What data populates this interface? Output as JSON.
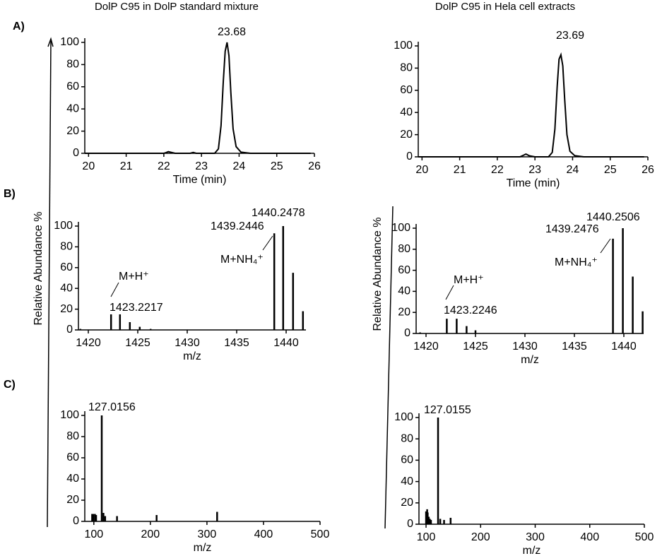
{
  "chart_data": [
    {
      "type": "line",
      "panel_label": "A)",
      "title": "DolP C95 in DolP standard mixture",
      "xlabel": "Time (min)",
      "x": [
        19.9,
        21,
        22,
        22.05,
        22.12,
        22.2,
        22.3,
        22.7,
        22.78,
        22.86,
        23,
        23.35,
        23.45,
        23.52,
        23.58,
        23.63,
        23.68,
        23.73,
        23.78,
        23.84,
        23.92,
        24.05,
        24.3,
        25,
        25.9
      ],
      "values": [
        0,
        0,
        0,
        0.5,
        1.5,
        0.8,
        0,
        0,
        0.8,
        0,
        0,
        0,
        4,
        25,
        65,
        92,
        100,
        88,
        55,
        22,
        6,
        1,
        0,
        0,
        0
      ],
      "color": "#000000",
      "xlim": [
        19.9,
        26
      ],
      "ylim": [
        0,
        100
      ],
      "xticks": [
        20,
        21,
        22,
        23,
        24,
        25,
        26
      ],
      "yticks": [
        0,
        20,
        40,
        60,
        80,
        100
      ],
      "annotations": [
        "23.68"
      ]
    },
    {
      "type": "stem",
      "panel_label": "B)",
      "ylabel": "Relative Abundance %",
      "xlabel": "m/z",
      "x": [
        1419.2,
        1422.3,
        1423.2,
        1424.2,
        1425.2,
        1426.3,
        1438.8,
        1439.7,
        1440.7,
        1441.7
      ],
      "values": [
        1,
        15,
        15,
        7.5,
        3,
        1,
        93,
        100,
        55,
        18
      ],
      "color": "#000000",
      "xlim": [
        1419,
        1442
      ],
      "ylim": [
        0,
        100
      ],
      "xticks": [
        1420,
        1425,
        1430,
        1435,
        1440
      ],
      "yticks": [
        0,
        20,
        40,
        60,
        80,
        100
      ],
      "annotations": [
        "M+H⁺",
        "1423.2217",
        "1439.2446",
        "1440.2478",
        "M+NH₄⁺"
      ]
    },
    {
      "type": "stem",
      "panel_label": "C)",
      "xlabel": "m/z",
      "x": [
        97,
        99,
        102,
        104,
        114,
        117,
        120,
        141,
        211,
        318
      ],
      "values": [
        7,
        7,
        7,
        6,
        100,
        8,
        5,
        5,
        6,
        9
      ],
      "color": "#000000",
      "xlim": [
        84,
        500
      ],
      "ylim": [
        0,
        100
      ],
      "xticks": [
        100,
        200,
        300,
        400,
        500
      ],
      "yticks": [
        0,
        20,
        40,
        60,
        80,
        100
      ],
      "annotations": [
        "127.0156"
      ]
    },
    {
      "type": "line",
      "title": "DolP C95 in Hela cell extracts",
      "xlabel": "Time (min)",
      "x": [
        19.9,
        21,
        22,
        22.6,
        22.7,
        22.76,
        22.85,
        23,
        23.36,
        23.46,
        23.53,
        23.59,
        23.64,
        23.69,
        23.74,
        23.79,
        23.85,
        23.93,
        24.06,
        24.3,
        25,
        25.9
      ],
      "values": [
        0,
        0,
        0,
        0,
        1.5,
        2.5,
        1,
        0,
        0,
        4,
        25,
        63,
        88,
        92,
        82,
        52,
        20,
        5,
        1,
        0,
        0,
        0
      ],
      "color": "#000000",
      "xlim": [
        19.9,
        26
      ],
      "ylim": [
        0,
        100
      ],
      "xticks": [
        20,
        21,
        22,
        23,
        24,
        25,
        26
      ],
      "yticks": [
        0,
        20,
        40,
        60,
        80,
        100
      ],
      "annotations": [
        "23.69"
      ]
    },
    {
      "type": "stem",
      "ylabel": "Relative Abundance %",
      "xlabel": "m/z",
      "x": [
        1419.4,
        1422.1,
        1423.1,
        1424.1,
        1425.0,
        1438.9,
        1439.9,
        1440.9,
        1441.9
      ],
      "values": [
        1,
        14,
        14,
        7,
        3,
        90,
        100,
        54,
        21
      ],
      "color": "#000000",
      "xlim": [
        1419,
        1442
      ],
      "ylim": [
        0,
        100
      ],
      "xticks": [
        1420,
        1425,
        1430,
        1435,
        1440
      ],
      "yticks": [
        0,
        20,
        40,
        60,
        80,
        100
      ],
      "annotations": [
        "M+H⁺",
        "1423.2246",
        "1439.2476",
        "1440.2506",
        "M+NH₄⁺"
      ]
    },
    {
      "type": "stem",
      "xlabel": "m/z",
      "x": [
        100,
        102,
        103,
        105,
        107,
        109,
        122,
        126,
        133,
        145
      ],
      "values": [
        12,
        14,
        11,
        7,
        5,
        4,
        100,
        5,
        4,
        6
      ],
      "color": "#000000",
      "xlim": [
        87,
        500
      ],
      "ylim": [
        0,
        100
      ],
      "xticks": [
        100,
        200,
        300,
        400,
        500
      ],
      "yticks": [
        0,
        20,
        40,
        60,
        80,
        100
      ],
      "annotations": [
        "127.0155"
      ]
    }
  ]
}
